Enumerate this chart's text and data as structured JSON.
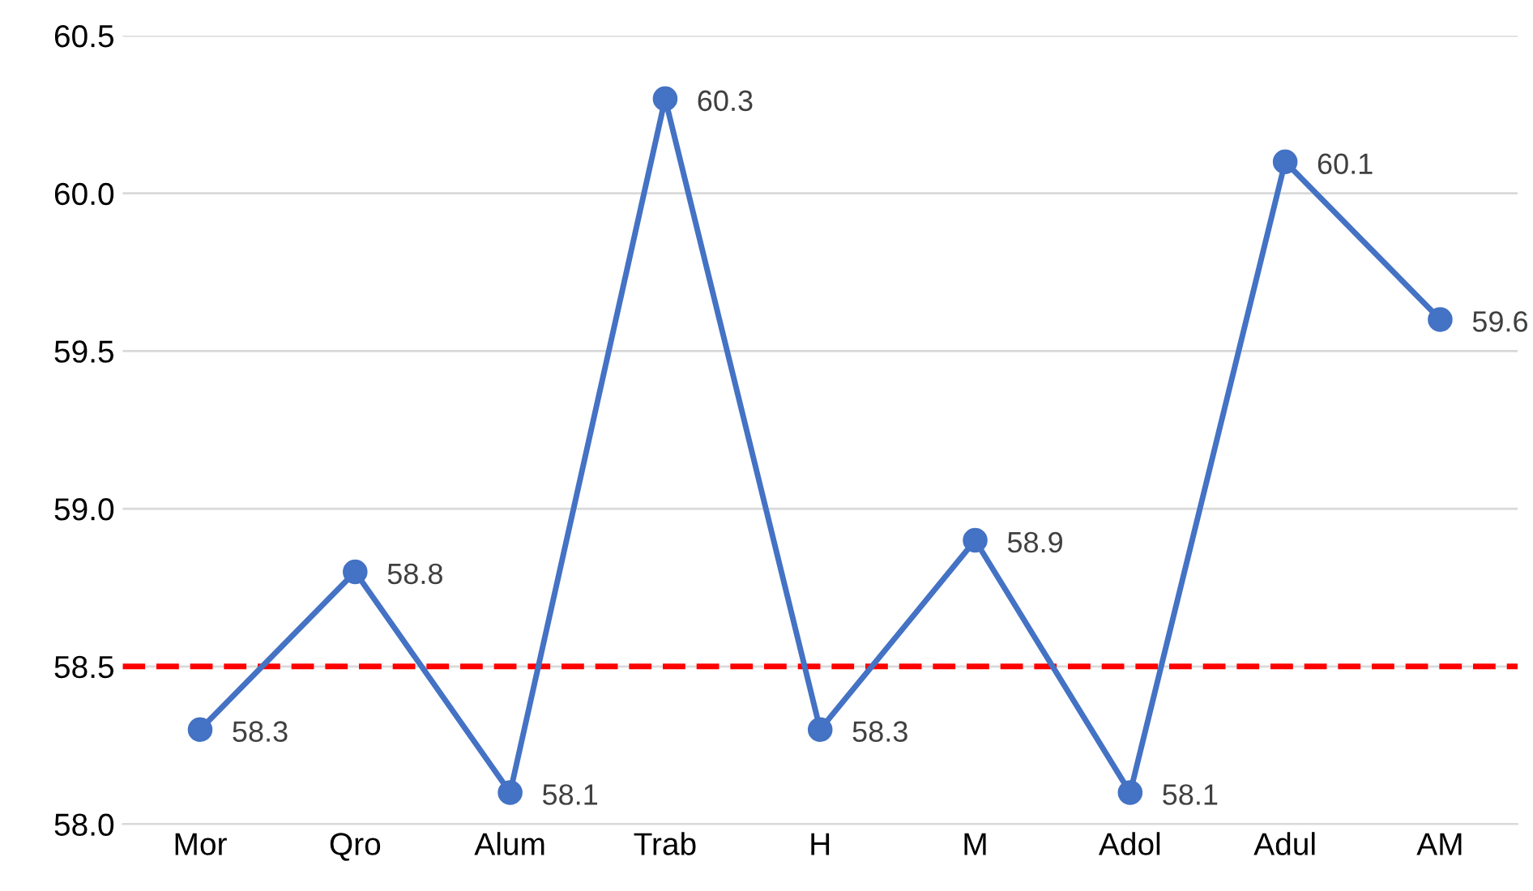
{
  "chart_data": {
    "type": "line",
    "categories": [
      "Mor",
      "Qro",
      "Alum",
      "Trab",
      "H",
      "M",
      "Adol",
      "Adul",
      "AM"
    ],
    "series": [
      {
        "color": "#4472c4",
        "values": [
          58.3,
          58.8,
          58.1,
          60.3,
          58.3,
          58.9,
          58.1,
          60.1,
          59.6
        ]
      }
    ],
    "ylim": [
      58.0,
      60.5
    ],
    "yticks": [
      {
        "value": 58.0,
        "label": "58.0"
      },
      {
        "value": 58.5,
        "label": "58.5"
      },
      {
        "value": 59.0,
        "label": "59.0"
      },
      {
        "value": 59.5,
        "label": "59.5"
      },
      {
        "value": 60.0,
        "label": "60.0"
      },
      {
        "value": 60.5,
        "label": "60.5"
      }
    ],
    "grid": "y",
    "marker": "circle",
    "line_style": "solid",
    "data_labels": true,
    "ref_lines": [
      {
        "axis": "y",
        "value": 58.5,
        "color": "#ff0000",
        "line_style": "dashed"
      }
    ]
  }
}
